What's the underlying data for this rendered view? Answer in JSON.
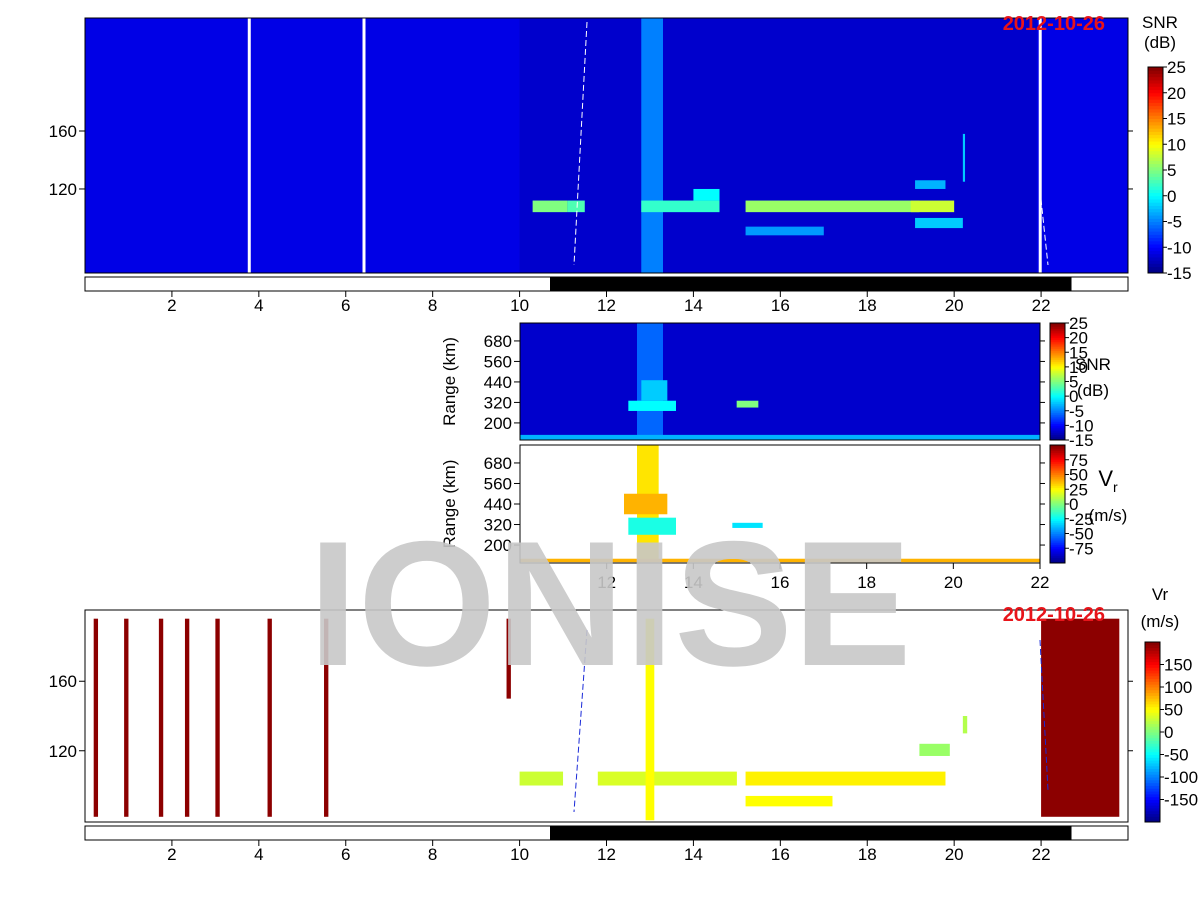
{
  "chart_data": [
    {
      "type": "heatmap",
      "date": "2012-10-26",
      "xlim": [
        0,
        24
      ],
      "ylim": [
        62,
        238
      ],
      "xticks": [
        2,
        4,
        6,
        8,
        10,
        12,
        14,
        16,
        18,
        20,
        22
      ],
      "yticks": [
        120,
        160
      ],
      "colorbar": {
        "label": [
          "SNR",
          "(dB)"
        ],
        "clim": [
          -15,
          25
        ],
        "ticks": [
          25,
          20,
          15,
          10,
          5,
          0,
          -5,
          -10,
          -15
        ]
      },
      "night": [
        10.7,
        22.7
      ],
      "gaps": [
        3.78,
        6.42,
        21.98
      ],
      "patches": [
        {
          "x": [
            0,
            24
          ],
          "y": [
            62,
            238
          ],
          "value": -11
        },
        {
          "x": [
            10,
            21.9
          ],
          "y": [
            62,
            238
          ],
          "value": -12
        },
        {
          "x": [
            12.8,
            13.3
          ],
          "y": [
            62,
            238
          ],
          "value": -5
        },
        {
          "x": [
            10.3,
            11.1
          ],
          "y": [
            104,
            112
          ],
          "value": 5
        },
        {
          "x": [
            11.1,
            11.5
          ],
          "y": [
            104,
            112
          ],
          "value": 3
        },
        {
          "x": [
            12.8,
            14.6
          ],
          "y": [
            104,
            112
          ],
          "value": 2
        },
        {
          "x": [
            14.0,
            14.6
          ],
          "y": [
            112,
            120
          ],
          "value": 0
        },
        {
          "x": [
            15.2,
            19.2
          ],
          "y": [
            104,
            112
          ],
          "value": 6
        },
        {
          "x": [
            19.0,
            20.0
          ],
          "y": [
            104,
            112
          ],
          "value": 8
        },
        {
          "x": [
            19.1,
            20.2
          ],
          "y": [
            93,
            100
          ],
          "value": -2
        },
        {
          "x": [
            15.2,
            17.0
          ],
          "y": [
            88,
            94
          ],
          "value": -4
        },
        {
          "x": [
            19.1,
            19.8
          ],
          "y": [
            120,
            126
          ],
          "value": -3
        },
        {
          "x": [
            20.2,
            20.25
          ],
          "y": [
            125,
            158
          ],
          "value": -2
        }
      ]
    },
    {
      "type": "heatmap",
      "ylabel": "Range (km)",
      "xlim": [
        10,
        22
      ],
      "ylim": [
        100,
        785
      ],
      "xticks": [],
      "yticks": [
        200,
        320,
        440,
        560,
        680
      ],
      "colorbar": {
        "label": [
          "SNR",
          "(dB)"
        ],
        "clim": [
          -15,
          25
        ],
        "ticks": [
          25,
          20,
          15,
          10,
          5,
          0,
          -5,
          -10,
          -15
        ]
      },
      "patches": [
        {
          "x": [
            10,
            22
          ],
          "y": [
            100,
            785
          ],
          "value": -12
        },
        {
          "x": [
            12.7,
            13.3
          ],
          "y": [
            100,
            785
          ],
          "value": -6
        },
        {
          "x": [
            12.5,
            13.6
          ],
          "y": [
            270,
            330
          ],
          "value": 0
        },
        {
          "x": [
            12.8,
            13.4
          ],
          "y": [
            330,
            450
          ],
          "value": -2
        },
        {
          "x": [
            15.0,
            15.5
          ],
          "y": [
            290,
            330
          ],
          "value": 5
        },
        {
          "x": [
            10,
            22
          ],
          "y": [
            100,
            130
          ],
          "value": -3
        }
      ]
    },
    {
      "type": "heatmap",
      "ylabel": "Range (km)",
      "xlim": [
        10,
        22
      ],
      "ylim": [
        95,
        785
      ],
      "xticks": [
        12,
        14,
        16,
        18,
        20,
        22
      ],
      "yticks": [
        200,
        320,
        440,
        560,
        680
      ],
      "colorbar": {
        "label": [
          "V",
          "(m/s)"
        ],
        "label_sub": "r",
        "clim": [
          -100,
          100
        ],
        "ticks": [
          75,
          50,
          25,
          0,
          -25,
          -50,
          -75
        ]
      },
      "patches": [
        {
          "x": [
            12.7,
            13.2
          ],
          "y": [
            100,
            785
          ],
          "value": 30
        },
        {
          "x": [
            12.4,
            13.4
          ],
          "y": [
            380,
            500
          ],
          "value": 40
        },
        {
          "x": [
            12.5,
            13.6
          ],
          "y": [
            260,
            360
          ],
          "value": -20
        },
        {
          "x": [
            14.9,
            15.6
          ],
          "y": [
            300,
            330
          ],
          "value": -30
        },
        {
          "x": [
            10,
            22
          ],
          "y": [
            100,
            120
          ],
          "value": 40
        }
      ]
    },
    {
      "type": "heatmap",
      "date": "2012-10-26",
      "xlim": [
        0,
        24
      ],
      "ylim": [
        79,
        201
      ],
      "xticks": [
        2,
        4,
        6,
        8,
        10,
        12,
        14,
        16,
        18,
        20,
        22
      ],
      "yticks": [
        120,
        160
      ],
      "colorbar": {
        "label": [
          "Vr",
          "(m/s)"
        ],
        "clim": [
          -200,
          200
        ],
        "ticks": [
          150,
          100,
          50,
          0,
          -50,
          -100,
          -150
        ]
      },
      "night": [
        10.7,
        22.7
      ],
      "patches": [
        {
          "x": [
            0.2,
            0.3
          ],
          "y": [
            82,
            196
          ],
          "value": 195
        },
        {
          "x": [
            0.9,
            1.0
          ],
          "y": [
            82,
            196
          ],
          "value": 195
        },
        {
          "x": [
            1.7,
            1.8
          ],
          "y": [
            82,
            196
          ],
          "value": 195
        },
        {
          "x": [
            2.3,
            2.4
          ],
          "y": [
            82,
            196
          ],
          "value": 195
        },
        {
          "x": [
            3.0,
            3.1
          ],
          "y": [
            82,
            196
          ],
          "value": 195
        },
        {
          "x": [
            4.2,
            4.3
          ],
          "y": [
            82,
            196
          ],
          "value": 195
        },
        {
          "x": [
            5.5,
            5.6
          ],
          "y": [
            82,
            196
          ],
          "value": 195
        },
        {
          "x": [
            9.7,
            9.8
          ],
          "y": [
            150,
            196
          ],
          "value": 195
        },
        {
          "x": [
            10.0,
            11.0
          ],
          "y": [
            100,
            108
          ],
          "value": 30
        },
        {
          "x": [
            11.8,
            15.0
          ],
          "y": [
            100,
            108
          ],
          "value": 35
        },
        {
          "x": [
            12.9,
            13.1
          ],
          "y": [
            80,
            196
          ],
          "value": 50
        },
        {
          "x": [
            15.2,
            19.8
          ],
          "y": [
            100,
            108
          ],
          "value": 55
        },
        {
          "x": [
            15.2,
            17.2
          ],
          "y": [
            88,
            94
          ],
          "value": 50
        },
        {
          "x": [
            19.2,
            19.9
          ],
          "y": [
            117,
            124
          ],
          "value": 10
        },
        {
          "x": [
            20.2,
            20.3
          ],
          "y": [
            130,
            140
          ],
          "value": 20
        },
        {
          "x": [
            22.0,
            23.8
          ],
          "y": [
            82,
            196
          ],
          "value": 195
        }
      ]
    }
  ],
  "watermark": "IONISE"
}
